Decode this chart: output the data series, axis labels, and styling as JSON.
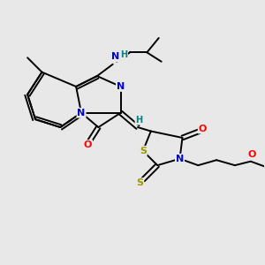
{
  "bg_color": "#e8e8e8",
  "atom_colors": {
    "C": "#000000",
    "N": "#0000cc",
    "O": "#ff0000",
    "S": "#999900",
    "H": "#008080"
  },
  "bond_color": "#000000",
  "figsize": [
    3.0,
    3.0
  ],
  "dpi": 100,
  "lw": 1.4,
  "fs": 7.0
}
